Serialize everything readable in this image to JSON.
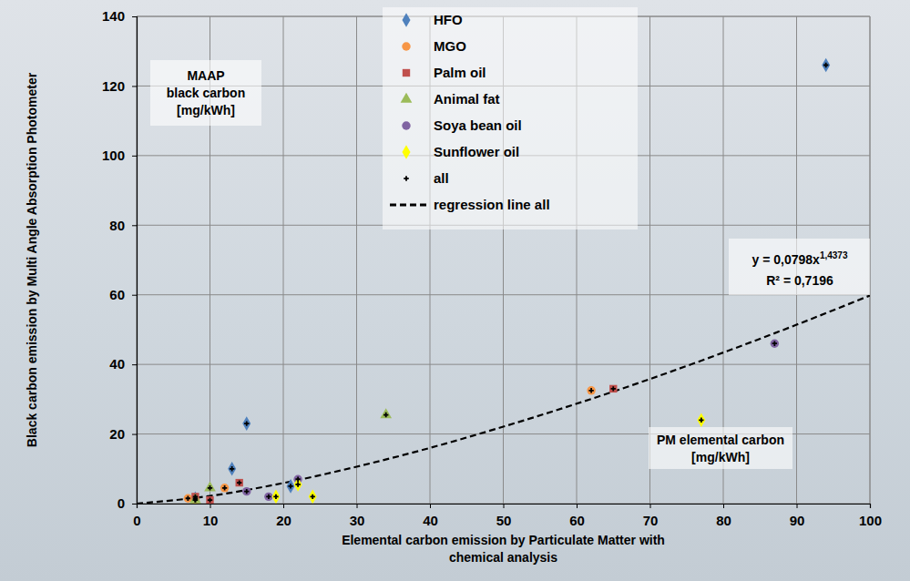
{
  "chart_data": {
    "type": "scatter",
    "x_label": "Elemental carbon emission by Particulate Matter with chemical analysis",
    "y_label": "Black carbon emission by Multi Angle Absorption Photometer",
    "xlim": [
      0,
      100
    ],
    "ylim": [
      0,
      140
    ],
    "xticks": [
      0,
      10,
      20,
      30,
      40,
      50,
      60,
      70,
      80,
      90,
      100
    ],
    "yticks": [
      0,
      20,
      40,
      60,
      80,
      100,
      120,
      140
    ],
    "grid": true,
    "legend": "top",
    "series": [
      {
        "name": "HFO",
        "color": "#4f81bd",
        "marker": "diamond",
        "x": [
          8,
          13,
          15,
          21,
          94
        ],
        "values": [
          1.5,
          10,
          23,
          5,
          126
        ]
      },
      {
        "name": "MGO",
        "color": "#f79646",
        "marker": "circle",
        "x": [
          7,
          8,
          12,
          62
        ],
        "values": [
          1.5,
          1,
          4.5,
          32.5
        ]
      },
      {
        "name": "Palm oil",
        "color": "#c0504d",
        "marker": "square",
        "x": [
          8,
          10,
          14,
          65
        ],
        "values": [
          2,
          1,
          6,
          33
        ]
      },
      {
        "name": "Animal fat",
        "color": "#9bbb59",
        "marker": "triangle",
        "x": [
          8,
          10,
          34
        ],
        "values": [
          1,
          4.5,
          25.5
        ]
      },
      {
        "name": "Soya bean oil",
        "color": "#8064a2",
        "marker": "circle",
        "x": [
          15,
          18,
          22,
          87
        ],
        "values": [
          3.5,
          2,
          7,
          46
        ]
      },
      {
        "name": "Sunflower oil",
        "color": "#ffff00",
        "marker": "diamond",
        "x": [
          19,
          22,
          24,
          77
        ],
        "values": [
          2,
          5.5,
          2,
          24
        ]
      },
      {
        "name": "all",
        "color": "#000000",
        "marker": "plus",
        "x": [
          8,
          13,
          15,
          21,
          94,
          7,
          8,
          12,
          62,
          8,
          10,
          14,
          65,
          8,
          10,
          34,
          15,
          18,
          22,
          87,
          19,
          22,
          24,
          77
        ],
        "values": [
          1.5,
          10,
          23,
          5,
          126,
          1.5,
          1,
          4.5,
          32.5,
          2,
          1,
          6,
          33,
          1,
          4.5,
          25.5,
          3.5,
          2,
          7,
          46,
          2,
          5.5,
          2,
          24
        ]
      },
      {
        "name": "regression line all",
        "type": "line",
        "color": "#000000",
        "line_style": "dashed",
        "marker": "none",
        "x": [
          0,
          10,
          20,
          30,
          40,
          50,
          60,
          70,
          80,
          90,
          100
        ],
        "values": [
          0,
          2.2,
          5.9,
          10.6,
          16,
          22.1,
          28.7,
          35.8,
          43.4,
          51.4,
          59.8
        ]
      }
    ],
    "annotations": [
      {
        "lines": [
          "MAAP",
          "black carbon",
          "[mg/kWh]"
        ]
      },
      {
        "lines": [
          "PM elemental carbon",
          "[mg/kWh]"
        ]
      },
      {
        "text": "y = 0,0798x",
        "superscript": "1,4373"
      },
      {
        "text": "R² = 0,7196"
      }
    ]
  }
}
